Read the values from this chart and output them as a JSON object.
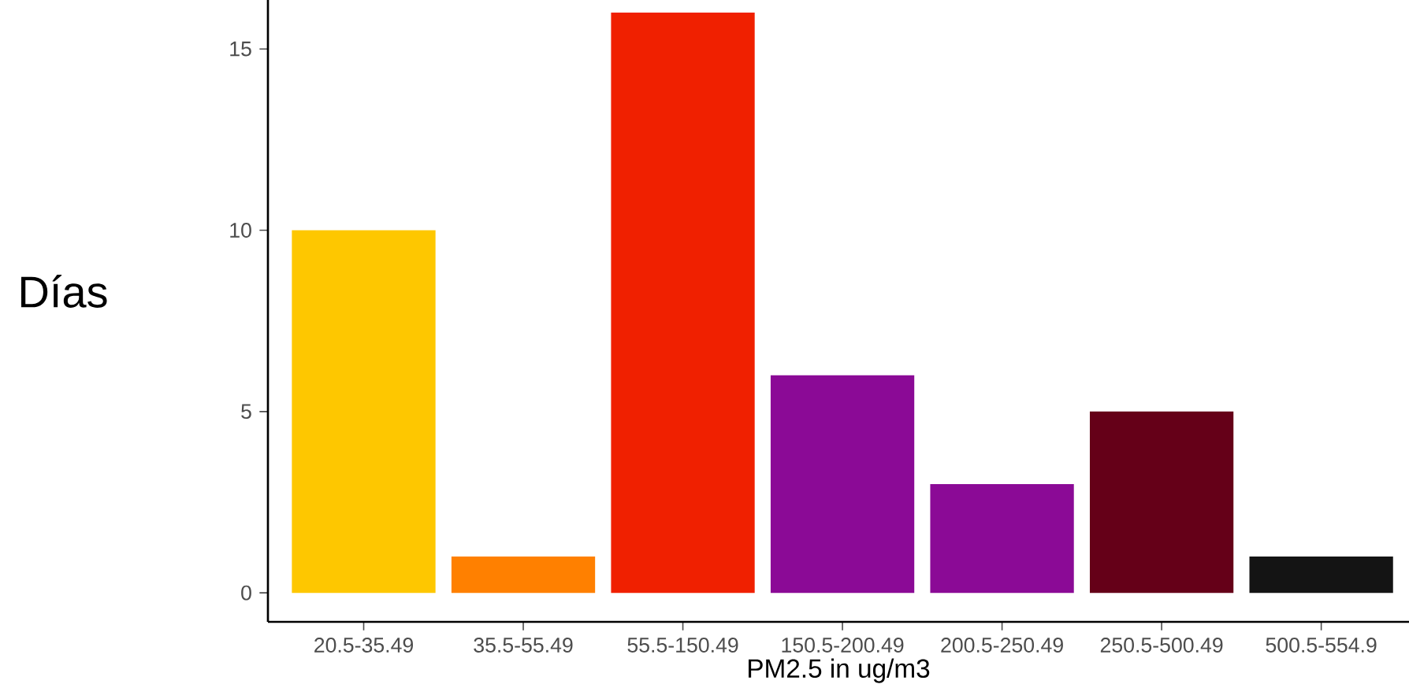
{
  "chart_data": {
    "type": "bar",
    "categories": [
      "20.5-35.49",
      "35.5-55.49",
      "55.5-150.49",
      "150.5-200.49",
      "200.5-250.49",
      "250.5-500.49",
      "500.5-554.9"
    ],
    "values": [
      10,
      1,
      16,
      6,
      3,
      5,
      1
    ],
    "colors": [
      "#fec700",
      "#ff8000",
      "#f02000",
      "#8b0a96",
      "#8b0a96",
      "#650018",
      "#141414"
    ],
    "xlabel": "PM2.5 in ug/m3",
    "ylabel": "Días",
    "ylim": [
      -0.8,
      16.35
    ],
    "yticks": [
      0,
      5,
      10,
      15
    ]
  }
}
